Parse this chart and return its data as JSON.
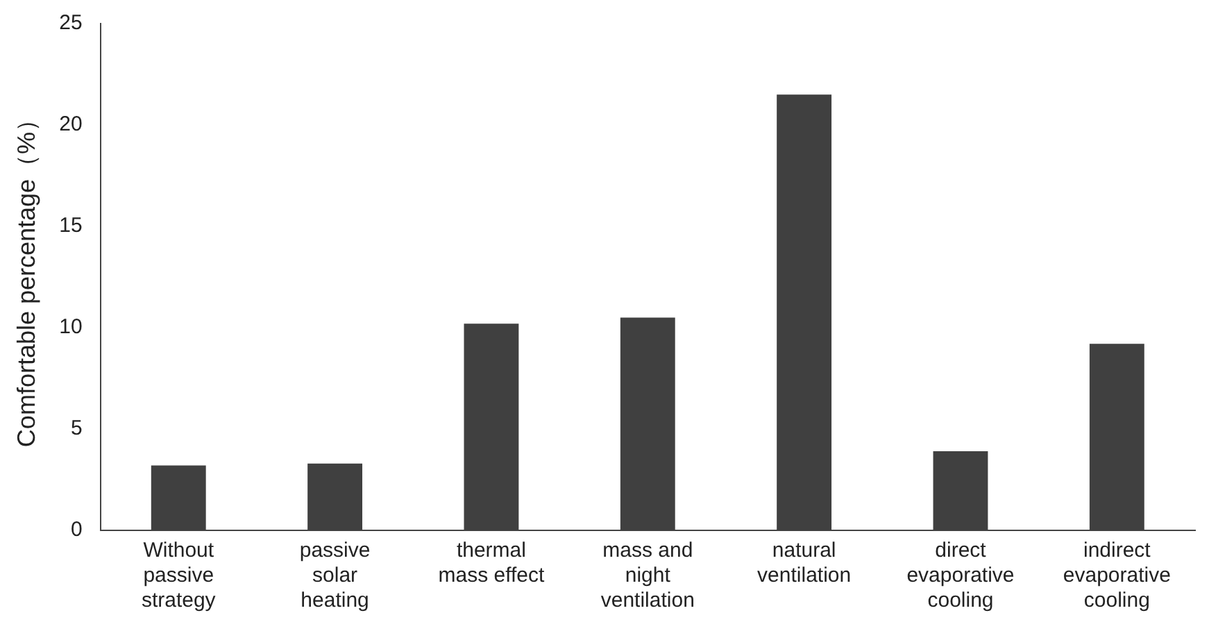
{
  "chart_data": {
    "type": "bar",
    "ylabel": "Comfortable percentage（%）",
    "categories": [
      "Without passive strategy",
      "passive solar heating",
      "thermal mass effect",
      "mass and night ventilation",
      "natural ventilation",
      "direct evaporative cooling",
      "indirect evaporative cooling"
    ],
    "values": [
      3.2,
      3.3,
      10.2,
      10.5,
      21.5,
      3.9,
      9.2
    ],
    "color": "#404040",
    "ylim": [
      0,
      25
    ],
    "yticks": [
      0,
      5,
      10,
      15,
      20,
      25
    ],
    "grid": false,
    "legend": false
  }
}
